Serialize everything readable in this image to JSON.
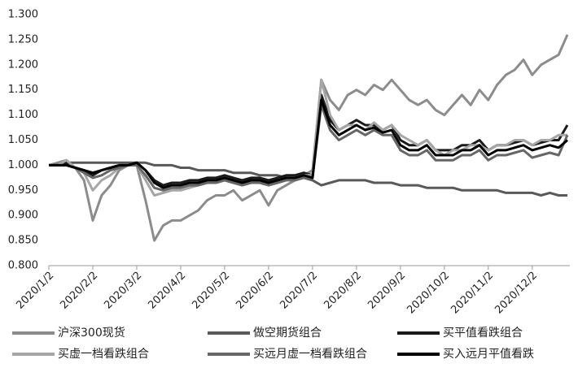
{
  "chart_data": {
    "type": "line",
    "categories": [
      "2020/1/2",
      null,
      null,
      null,
      null,
      "2020/2/2",
      null,
      null,
      null,
      null,
      "2020/3/2",
      null,
      null,
      null,
      null,
      "2020/4/2",
      null,
      null,
      null,
      null,
      "2020/5/2",
      null,
      null,
      null,
      null,
      "2020/6/2",
      null,
      null,
      null,
      null,
      "2020/7/2",
      null,
      null,
      null,
      null,
      "2020/8/2",
      null,
      null,
      null,
      null,
      "2020/9/2",
      null,
      null,
      null,
      null,
      "2020/10/2",
      null,
      null,
      null,
      null,
      "2020/11/2",
      null,
      null,
      null,
      null,
      "2020/12/2",
      null,
      null,
      null,
      null
    ],
    "ylim": [
      0.8,
      1.3
    ],
    "yticks": [
      {
        "value": 0.8,
        "label": "0.800"
      },
      {
        "value": 0.85,
        "label": "0.850"
      },
      {
        "value": 0.9,
        "label": "0.900"
      },
      {
        "value": 0.95,
        "label": "0.950"
      },
      {
        "value": 1.0,
        "label": "1.000"
      },
      {
        "value": 1.05,
        "label": "1.050"
      },
      {
        "value": 1.1,
        "label": "1.100"
      },
      {
        "value": 1.15,
        "label": "1.150"
      },
      {
        "value": 1.2,
        "label": "1.200"
      },
      {
        "value": 1.25,
        "label": "1.250"
      },
      {
        "value": 1.3,
        "label": "1.300"
      }
    ],
    "grid": false,
    "legend": "bottom",
    "series": [
      {
        "name": "沪深300现货",
        "color": "#8c8c8c",
        "values": [
          1.0,
          1.005,
          1.01,
          0.995,
          0.97,
          0.89,
          0.94,
          0.96,
          0.99,
          1.0,
          1.0,
          0.93,
          0.85,
          0.88,
          0.89,
          0.89,
          0.9,
          0.91,
          0.93,
          0.94,
          0.94,
          0.95,
          0.93,
          0.94,
          0.95,
          0.92,
          0.95,
          0.96,
          0.97,
          0.98,
          0.99,
          1.17,
          1.13,
          1.11,
          1.14,
          1.15,
          1.14,
          1.16,
          1.15,
          1.17,
          1.15,
          1.13,
          1.12,
          1.13,
          1.11,
          1.1,
          1.12,
          1.14,
          1.12,
          1.15,
          1.13,
          1.16,
          1.18,
          1.19,
          1.21,
          1.18,
          1.2,
          1.21,
          1.22,
          1.26
        ]
      },
      {
        "name": "做空期货组合",
        "color": "#595959",
        "values": [
          1.0,
          1.0,
          1.005,
          1.005,
          1.005,
          1.005,
          1.005,
          1.005,
          1.005,
          1.005,
          1.005,
          1.005,
          1.0,
          1.0,
          1.0,
          0.995,
          0.995,
          0.99,
          0.99,
          0.99,
          0.99,
          0.985,
          0.985,
          0.985,
          0.98,
          0.98,
          0.98,
          0.975,
          0.975,
          0.975,
          0.97,
          0.96,
          0.965,
          0.97,
          0.97,
          0.97,
          0.97,
          0.965,
          0.965,
          0.965,
          0.96,
          0.96,
          0.96,
          0.955,
          0.955,
          0.955,
          0.955,
          0.95,
          0.95,
          0.95,
          0.95,
          0.95,
          0.945,
          0.945,
          0.945,
          0.945,
          0.94,
          0.945,
          0.94,
          0.94
        ]
      },
      {
        "name": "买平值看跌组合",
        "color": "#1a1a1a",
        "values": [
          1.0,
          1.0,
          1.005,
          0.995,
          0.99,
          0.98,
          0.99,
          0.995,
          1.0,
          1.0,
          1.005,
          0.99,
          0.97,
          0.96,
          0.965,
          0.965,
          0.97,
          0.97,
          0.975,
          0.975,
          0.98,
          0.975,
          0.97,
          0.975,
          0.975,
          0.97,
          0.975,
          0.98,
          0.98,
          0.985,
          0.98,
          1.14,
          1.09,
          1.07,
          1.08,
          1.09,
          1.08,
          1.08,
          1.07,
          1.08,
          1.05,
          1.04,
          1.04,
          1.05,
          1.03,
          1.03,
          1.03,
          1.04,
          1.04,
          1.05,
          1.03,
          1.04,
          1.04,
          1.045,
          1.05,
          1.04,
          1.045,
          1.05,
          1.05,
          1.08
        ]
      },
      {
        "name": "买虚一档看跌组合",
        "color": "#a6a6a6",
        "values": [
          1.0,
          1.0,
          1.01,
          0.995,
          0.985,
          0.95,
          0.97,
          0.98,
          0.995,
          1.0,
          1.0,
          0.97,
          0.94,
          0.945,
          0.95,
          0.95,
          0.955,
          0.96,
          0.965,
          0.965,
          0.97,
          0.965,
          0.96,
          0.965,
          0.97,
          0.96,
          0.965,
          0.97,
          0.975,
          0.98,
          0.98,
          1.17,
          1.1,
          1.07,
          1.08,
          1.08,
          1.07,
          1.085,
          1.07,
          1.08,
          1.06,
          1.05,
          1.04,
          1.05,
          1.03,
          1.02,
          1.03,
          1.03,
          1.04,
          1.04,
          1.03,
          1.04,
          1.04,
          1.05,
          1.05,
          1.04,
          1.05,
          1.05,
          1.06,
          1.06
        ]
      },
      {
        "name": "买远月虚一档看跌组合",
        "color": "#666666",
        "values": [
          1.0,
          1.0,
          1.0,
          0.995,
          0.985,
          0.975,
          0.98,
          0.99,
          0.995,
          1.0,
          1.0,
          0.98,
          0.955,
          0.95,
          0.955,
          0.955,
          0.96,
          0.96,
          0.965,
          0.965,
          0.97,
          0.965,
          0.96,
          0.965,
          0.965,
          0.96,
          0.965,
          0.97,
          0.97,
          0.975,
          0.975,
          1.12,
          1.07,
          1.05,
          1.06,
          1.07,
          1.06,
          1.07,
          1.06,
          1.06,
          1.03,
          1.02,
          1.02,
          1.03,
          1.01,
          1.01,
          1.01,
          1.02,
          1.02,
          1.03,
          1.01,
          1.02,
          1.02,
          1.025,
          1.03,
          1.015,
          1.02,
          1.025,
          1.02,
          1.06
        ]
      },
      {
        "name": "买入远月平值看跌",
        "color": "#000000",
        "values": [
          1.0,
          1.0,
          1.0,
          0.995,
          0.99,
          0.985,
          0.99,
          0.995,
          1.0,
          1.0,
          1.005,
          0.99,
          0.965,
          0.955,
          0.96,
          0.96,
          0.965,
          0.965,
          0.97,
          0.97,
          0.975,
          0.97,
          0.965,
          0.97,
          0.97,
          0.965,
          0.97,
          0.975,
          0.975,
          0.98,
          0.975,
          1.13,
          1.08,
          1.06,
          1.07,
          1.08,
          1.07,
          1.075,
          1.065,
          1.07,
          1.04,
          1.03,
          1.03,
          1.04,
          1.02,
          1.02,
          1.02,
          1.03,
          1.03,
          1.04,
          1.02,
          1.03,
          1.03,
          1.035,
          1.04,
          1.03,
          1.035,
          1.04,
          1.035,
          1.05
        ]
      }
    ]
  }
}
